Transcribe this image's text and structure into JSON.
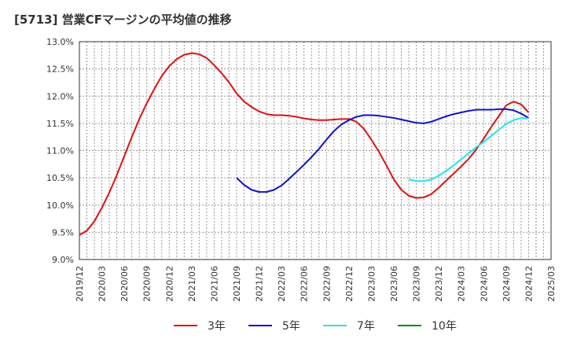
{
  "chart_data": {
    "type": "line",
    "title": "[5713]  営業CFマージンの平均値の推移",
    "xlabel": "",
    "ylabel": "",
    "ylim": [
      9.0,
      13.0
    ],
    "y_ticks": [
      "9.0%",
      "9.5%",
      "10.0%",
      "10.5%",
      "11.0%",
      "11.5%",
      "12.0%",
      "12.5%",
      "13.0%"
    ],
    "x_ticks": [
      "2019/12",
      "2020/03",
      "2020/06",
      "2020/09",
      "2020/12",
      "2021/03",
      "2021/06",
      "2021/09",
      "2021/12",
      "2022/03",
      "2022/06",
      "2022/09",
      "2022/12",
      "2023/03",
      "2023/06",
      "2023/09",
      "2023/12",
      "2024/03",
      "2024/06",
      "2024/09",
      "2024/12",
      "2025/03"
    ],
    "grid": true,
    "legend_position": "bottom",
    "series": [
      {
        "name": "3年",
        "color": "#dd1111",
        "points": [
          [
            "2019/12",
            9.45
          ],
          [
            "2020/01",
            9.53
          ],
          [
            "2020/02",
            9.7
          ],
          [
            "2020/03",
            9.95
          ],
          [
            "2020/04",
            10.23
          ],
          [
            "2020/05",
            10.55
          ],
          [
            "2020/06",
            10.9
          ],
          [
            "2020/07",
            11.25
          ],
          [
            "2020/08",
            11.58
          ],
          [
            "2020/09",
            11.87
          ],
          [
            "2020/10",
            12.13
          ],
          [
            "2020/11",
            12.37
          ],
          [
            "2020/12",
            12.55
          ],
          [
            "2021/01",
            12.68
          ],
          [
            "2021/02",
            12.76
          ],
          [
            "2021/03",
            12.79
          ],
          [
            "2021/04",
            12.77
          ],
          [
            "2021/05",
            12.7
          ],
          [
            "2021/06",
            12.57
          ],
          [
            "2021/07",
            12.42
          ],
          [
            "2021/08",
            12.25
          ],
          [
            "2021/09",
            12.05
          ],
          [
            "2021/10",
            11.9
          ],
          [
            "2021/11",
            11.8
          ],
          [
            "2021/12",
            11.72
          ],
          [
            "2022/01",
            11.67
          ],
          [
            "2022/02",
            11.65
          ],
          [
            "2022/03",
            11.65
          ],
          [
            "2022/04",
            11.64
          ],
          [
            "2022/05",
            11.62
          ],
          [
            "2022/06",
            11.59
          ],
          [
            "2022/07",
            11.57
          ],
          [
            "2022/08",
            11.56
          ],
          [
            "2022/09",
            11.56
          ],
          [
            "2022/10",
            11.57
          ],
          [
            "2022/11",
            11.58
          ],
          [
            "2022/12",
            11.58
          ],
          [
            "2023/01",
            11.53
          ],
          [
            "2023/02",
            11.4
          ],
          [
            "2023/03",
            11.2
          ],
          [
            "2023/04",
            10.98
          ],
          [
            "2023/05",
            10.73
          ],
          [
            "2023/06",
            10.47
          ],
          [
            "2023/07",
            10.28
          ],
          [
            "2023/08",
            10.17
          ],
          [
            "2023/09",
            10.13
          ],
          [
            "2023/10",
            10.14
          ],
          [
            "2023/11",
            10.2
          ],
          [
            "2023/12",
            10.32
          ],
          [
            "2024/01",
            10.45
          ],
          [
            "2024/02",
            10.58
          ],
          [
            "2024/03",
            10.71
          ],
          [
            "2024/04",
            10.85
          ],
          [
            "2024/05",
            11.02
          ],
          [
            "2024/06",
            11.22
          ],
          [
            "2024/07",
            11.43
          ],
          [
            "2024/08",
            11.63
          ],
          [
            "2024/09",
            11.83
          ],
          [
            "2024/10",
            11.9
          ],
          [
            "2024/11",
            11.85
          ],
          [
            "2024/12",
            11.7
          ]
        ]
      },
      {
        "name": "5年",
        "color": "#1111cc",
        "points": [
          [
            "2021/09",
            10.5
          ],
          [
            "2021/10",
            10.37
          ],
          [
            "2021/11",
            10.28
          ],
          [
            "2021/12",
            10.24
          ],
          [
            "2022/01",
            10.24
          ],
          [
            "2022/02",
            10.28
          ],
          [
            "2022/03",
            10.36
          ],
          [
            "2022/04",
            10.48
          ],
          [
            "2022/05",
            10.61
          ],
          [
            "2022/06",
            10.74
          ],
          [
            "2022/07",
            10.88
          ],
          [
            "2022/08",
            11.03
          ],
          [
            "2022/09",
            11.2
          ],
          [
            "2022/10",
            11.36
          ],
          [
            "2022/11",
            11.48
          ],
          [
            "2022/12",
            11.56
          ],
          [
            "2023/01",
            11.62
          ],
          [
            "2023/02",
            11.65
          ],
          [
            "2023/03",
            11.65
          ],
          [
            "2023/04",
            11.64
          ],
          [
            "2023/05",
            11.62
          ],
          [
            "2023/06",
            11.6
          ],
          [
            "2023/07",
            11.57
          ],
          [
            "2023/08",
            11.54
          ],
          [
            "2023/09",
            11.51
          ],
          [
            "2023/10",
            11.5
          ],
          [
            "2023/11",
            11.53
          ],
          [
            "2023/12",
            11.58
          ],
          [
            "2024/01",
            11.63
          ],
          [
            "2024/02",
            11.67
          ],
          [
            "2024/03",
            11.7
          ],
          [
            "2024/04",
            11.73
          ],
          [
            "2024/05",
            11.75
          ],
          [
            "2024/06",
            11.75
          ],
          [
            "2024/07",
            11.75
          ],
          [
            "2024/08",
            11.76
          ],
          [
            "2024/09",
            11.76
          ],
          [
            "2024/10",
            11.74
          ],
          [
            "2024/11",
            11.68
          ],
          [
            "2024/12",
            11.6
          ]
        ]
      },
      {
        "name": "7年",
        "color": "#22e5ee",
        "points": [
          [
            "2023/08",
            10.47
          ],
          [
            "2023/09",
            10.44
          ],
          [
            "2023/10",
            10.44
          ],
          [
            "2023/11",
            10.47
          ],
          [
            "2023/12",
            10.54
          ],
          [
            "2024/01",
            10.63
          ],
          [
            "2024/02",
            10.73
          ],
          [
            "2024/03",
            10.84
          ],
          [
            "2024/04",
            10.95
          ],
          [
            "2024/05",
            11.06
          ],
          [
            "2024/06",
            11.16
          ],
          [
            "2024/07",
            11.27
          ],
          [
            "2024/08",
            11.38
          ],
          [
            "2024/09",
            11.49
          ],
          [
            "2024/10",
            11.56
          ],
          [
            "2024/11",
            11.6
          ],
          [
            "2024/12",
            11.59
          ]
        ]
      },
      {
        "name": "10年",
        "color": "#118811",
        "points": []
      }
    ]
  }
}
